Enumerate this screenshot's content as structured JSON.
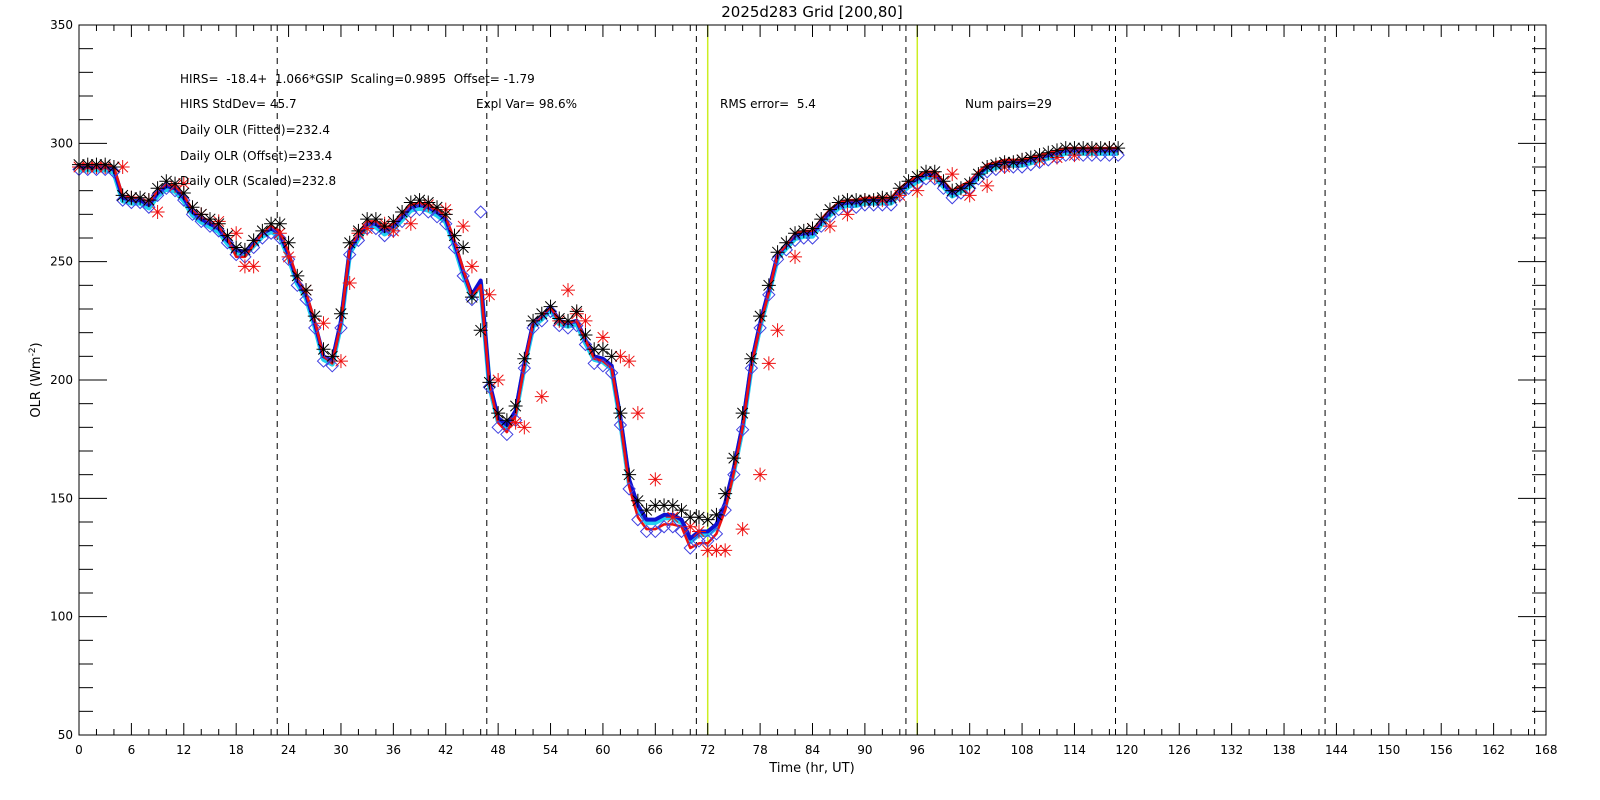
{
  "chart_data": {
    "type": "line",
    "title": "2025d283 Grid [200,80]",
    "xlabel": "Time (hr, UT)",
    "ylabel": "OLR (Wm",
    "ylabel_sup": "-2",
    "ylabel_close": ")",
    "xlim": [
      0,
      168
    ],
    "ylim": [
      50,
      350
    ],
    "xticks": [
      0,
      6,
      12,
      18,
      24,
      30,
      36,
      42,
      48,
      54,
      60,
      66,
      72,
      78,
      84,
      90,
      96,
      102,
      108,
      114,
      120,
      126,
      132,
      138,
      144,
      150,
      156,
      162,
      168
    ],
    "yticks": [
      50,
      100,
      150,
      200,
      250,
      300,
      350
    ],
    "annotations": {
      "fit_line": "HIRS=  -18.4+  1.066*GSIP  Scaling=0.9895  Offset= -1.79",
      "stddev": "HIRS StdDev= 45.7",
      "expl_var": "Expl Var= 98.6%",
      "rms": "RMS error=  5.4",
      "num_pairs": "Num pairs=29",
      "daily_fitted": "Daily OLR (Fitted)=232.4",
      "daily_offset": "Daily OLR (Offset)=233.4",
      "daily_scaled": "Daily OLR (Scaled)=232.8"
    },
    "vlines_dashed": [
      22.7,
      46.7,
      70.7,
      94.7,
      118.7,
      142.7,
      166.7
    ],
    "vlines_green": [
      72,
      96
    ],
    "colors": {
      "blue_line": "#1010d0",
      "red_line": "#ee1010",
      "cyan_band": "#22d0f0",
      "black_marker": "#000000",
      "diamond": "#4040e0",
      "green_vline": "#ccee22"
    },
    "series": [
      {
        "style": "blue-line",
        "x": [
          0,
          1,
          2,
          3,
          4,
          5,
          6,
          7,
          8,
          9,
          10,
          11,
          12,
          13,
          14,
          15,
          16,
          17,
          18,
          19,
          20,
          21,
          22,
          23,
          24,
          25,
          26,
          27,
          28,
          29,
          30,
          31,
          32,
          33,
          34,
          35,
          36,
          37,
          38,
          39,
          40,
          41,
          42,
          43,
          44,
          45,
          46,
          47,
          48,
          49,
          50,
          51,
          52,
          53,
          54,
          55,
          56,
          57,
          58,
          59,
          60,
          61,
          62,
          63,
          64,
          65,
          66,
          67,
          68,
          69,
          70,
          71,
          72,
          73,
          74,
          75,
          76,
          77,
          78,
          79,
          80,
          81,
          82,
          83,
          84,
          85,
          86,
          87,
          88,
          89,
          90,
          91,
          92,
          93,
          94,
          95,
          96,
          97,
          98,
          99,
          100,
          101,
          102,
          103,
          104,
          105,
          106,
          107,
          108,
          109,
          110,
          111,
          112,
          113,
          114,
          115,
          116,
          117,
          118,
          119
        ],
        "y": [
          290,
          290,
          290,
          290,
          289,
          277,
          276,
          276,
          274,
          279,
          282,
          281,
          277,
          271,
          268,
          266,
          264,
          259,
          255,
          254,
          258,
          262,
          264,
          262,
          253,
          242,
          236,
          224,
          210,
          208,
          225,
          255,
          261,
          266,
          266,
          263,
          265,
          269,
          273,
          274,
          273,
          271,
          268,
          258,
          246,
          236,
          242,
          199,
          184,
          181,
          187,
          207,
          224,
          227,
          231,
          225,
          224,
          225,
          217,
          210,
          209,
          206,
          184,
          158,
          147,
          141,
          141,
          143,
          143,
          141,
          133,
          136,
          136,
          139,
          148,
          163,
          181,
          207,
          224,
          238,
          253,
          257,
          261,
          262,
          262,
          267,
          271,
          274,
          275,
          275,
          276,
          276,
          276,
          276,
          280,
          283,
          285,
          287,
          287,
          283,
          279,
          281,
          283,
          287,
          290,
          291,
          292,
          292,
          292,
          293,
          294,
          295,
          296,
          297,
          297,
          297,
          297,
          297,
          297,
          297
        ]
      },
      {
        "style": "red-line",
        "x": [
          0,
          1,
          2,
          3,
          4,
          5,
          6,
          7,
          8,
          9,
          10,
          11,
          12,
          13,
          14,
          15,
          16,
          17,
          18,
          19,
          20,
          21,
          22,
          23,
          24,
          25,
          26,
          27,
          28,
          29,
          30,
          31,
          32,
          33,
          34,
          35,
          36,
          37,
          38,
          39,
          40,
          41,
          42,
          43,
          44,
          45,
          46,
          47,
          48,
          49,
          50,
          51,
          52,
          53,
          54,
          55,
          56,
          57,
          58,
          59,
          60,
          61,
          62,
          63,
          64,
          65,
          66,
          67,
          68,
          69,
          70,
          71,
          72,
          73,
          74,
          75,
          76,
          77,
          78,
          79,
          80,
          81,
          82,
          83,
          84,
          85,
          86,
          87,
          88,
          89,
          90,
          91,
          92,
          93,
          94,
          95,
          96,
          97,
          98,
          99,
          100,
          101,
          102,
          103,
          104,
          105,
          106,
          107,
          108,
          109,
          110,
          111,
          112,
          113,
          114,
          115,
          116,
          117,
          118,
          119
        ],
        "y": [
          291,
          291,
          291,
          291,
          290,
          278,
          277,
          277,
          275,
          280,
          283,
          282,
          278,
          272,
          269,
          267,
          265,
          260,
          252,
          252,
          257,
          262,
          265,
          263,
          254,
          243,
          237,
          225,
          210,
          207,
          224,
          256,
          262,
          267,
          267,
          264,
          266,
          270,
          274,
          275,
          274,
          272,
          269,
          259,
          247,
          235,
          240,
          198,
          182,
          178,
          185,
          206,
          224,
          227,
          231,
          225,
          224,
          225,
          217,
          209,
          208,
          205,
          183,
          155,
          142,
          137,
          137,
          139,
          139,
          138,
          129,
          131,
          131,
          135,
          145,
          161,
          180,
          206,
          223,
          237,
          253,
          257,
          262,
          263,
          263,
          268,
          272,
          275,
          276,
          276,
          277,
          277,
          277,
          277,
          281,
          284,
          286,
          288,
          288,
          284,
          280,
          282,
          284,
          288,
          291,
          292,
          293,
          293,
          293,
          294,
          295,
          296,
          297,
          298,
          298,
          298,
          298,
          298,
          298,
          298
        ]
      },
      {
        "style": "black-markers",
        "x": [
          0,
          1,
          2,
          3,
          4,
          5,
          6,
          7,
          8,
          9,
          10,
          11,
          12,
          13,
          14,
          15,
          16,
          17,
          18,
          19,
          20,
          21,
          22,
          23,
          24,
          25,
          26,
          27,
          28,
          29,
          30,
          31,
          32,
          33,
          34,
          35,
          36,
          37,
          38,
          39,
          40,
          41,
          42,
          43,
          44,
          45,
          46,
          47,
          48,
          49,
          50,
          51,
          52,
          53,
          54,
          55,
          56,
          57,
          58,
          59,
          60,
          61,
          62,
          63,
          64,
          65,
          66,
          67,
          68,
          69,
          70,
          71,
          72,
          73,
          74,
          75,
          76,
          77,
          78,
          79,
          80,
          81,
          82,
          83,
          84,
          85,
          86,
          87,
          88,
          89,
          90,
          91,
          92,
          93,
          94,
          95,
          96,
          97,
          98,
          99,
          100,
          101,
          102,
          103,
          104,
          105,
          106,
          107,
          108,
          109,
          110,
          111,
          112,
          113,
          114,
          115,
          116,
          117,
          118,
          119
        ],
        "y": [
          291,
          291,
          291,
          291,
          290,
          278,
          277,
          277,
          276,
          281,
          284,
          283,
          279,
          273,
          270,
          268,
          266,
          261,
          256,
          255,
          259,
          263,
          266,
          266,
          258,
          244,
          238,
          227,
          213,
          210,
          228,
          258,
          263,
          268,
          268,
          265,
          267,
          271,
          275,
          276,
          275,
          273,
          270,
          261,
          256,
          235,
          221,
          199,
          186,
          183,
          189,
          209,
          225,
          228,
          231,
          226,
          225,
          229,
          219,
          213,
          213,
          210,
          186,
          160,
          149,
          145,
          147,
          147,
          147,
          145,
          142,
          142,
          141,
          143,
          152,
          167,
          186,
          209,
          227,
          240,
          254,
          258,
          262,
          263,
          264,
          268,
          272,
          275,
          276,
          276,
          276,
          276,
          277,
          277,
          281,
          284,
          286,
          288,
          288,
          284,
          280,
          281,
          283,
          287,
          290,
          291,
          292,
          292,
          293,
          294,
          295,
          296,
          297,
          298,
          298,
          298,
          298,
          298,
          298,
          298
        ]
      },
      {
        "style": "red-asterisks",
        "x": [
          0,
          1,
          2,
          3,
          5,
          6,
          8,
          9,
          11,
          12,
          14,
          16,
          18,
          19,
          20,
          23,
          24,
          26,
          28,
          30,
          31,
          32,
          33,
          35,
          36,
          38,
          40,
          42,
          44,
          45,
          47,
          48,
          50,
          51,
          53,
          55,
          56,
          57,
          58,
          60,
          62,
          63,
          64,
          66,
          68,
          70,
          71,
          72,
          73,
          74,
          76,
          78,
          79,
          80,
          82,
          84,
          86,
          88,
          90,
          92,
          94,
          96,
          98,
          100,
          102,
          104,
          106,
          108,
          110,
          112,
          114,
          116,
          118
        ],
        "y": [
          290,
          290,
          290,
          290,
          290,
          277,
          276,
          271,
          282,
          283,
          270,
          267,
          262,
          248,
          248,
          262,
          252,
          238,
          224,
          208,
          241,
          262,
          264,
          266,
          263,
          266,
          274,
          272,
          265,
          248,
          236,
          200,
          182,
          180,
          193,
          225,
          238,
          228,
          225,
          218,
          210,
          208,
          186,
          158,
          142,
          138,
          136,
          128,
          128,
          128,
          137,
          160,
          207,
          221,
          252,
          264,
          265,
          270,
          276,
          276,
          278,
          280,
          286,
          287,
          278,
          282,
          290,
          293,
          293,
          294,
          295,
          297,
          298
        ]
      },
      {
        "style": "diamonds",
        "x": [
          0,
          1,
          2,
          3,
          4,
          5,
          6,
          7,
          8,
          9,
          10,
          11,
          12,
          13,
          14,
          15,
          16,
          17,
          18,
          19,
          20,
          21,
          22,
          23,
          24,
          25,
          26,
          27,
          28,
          29,
          30,
          31,
          32,
          33,
          34,
          35,
          36,
          37,
          38,
          39,
          40,
          41,
          42,
          43,
          44,
          45,
          46,
          47,
          48,
          49,
          50,
          51,
          52,
          53,
          54,
          55,
          56,
          57,
          58,
          59,
          60,
          61,
          62,
          63,
          64,
          65,
          66,
          67,
          68,
          69,
          70,
          71,
          72,
          73,
          74,
          75,
          76,
          77,
          78,
          79,
          80,
          81,
          82,
          83,
          84,
          85,
          86,
          87,
          88,
          89,
          90,
          91,
          92,
          93,
          94,
          95,
          96,
          97,
          98,
          99,
          100,
          101,
          102,
          103,
          104,
          105,
          106,
          107,
          108,
          109,
          110,
          111,
          112,
          113,
          114,
          115,
          116,
          117,
          118,
          119
        ],
        "y": [
          289,
          289,
          289,
          289,
          288,
          276,
          275,
          275,
          273,
          278,
          281,
          280,
          276,
          270,
          267,
          265,
          263,
          258,
          253,
          252,
          256,
          260,
          262,
          260,
          251,
          240,
          234,
          222,
          208,
          206,
          222,
          253,
          259,
          264,
          264,
          261,
          263,
          267,
          271,
          272,
          271,
          269,
          266,
          256,
          244,
          234,
          271,
          197,
          180,
          177,
          183,
          205,
          222,
          225,
          229,
          223,
          222,
          223,
          215,
          207,
          206,
          203,
          181,
          154,
          141,
          136,
          136,
          138,
          138,
          136,
          129,
          132,
          132,
          135,
          145,
          160,
          179,
          205,
          222,
          236,
          251,
          255,
          259,
          260,
          260,
          265,
          269,
          272,
          273,
          273,
          274,
          274,
          274,
          274,
          278,
          281,
          283,
          285,
          285,
          281,
          277,
          279,
          281,
          285,
          288,
          289,
          290,
          290,
          290,
          291,
          292,
          293,
          294,
          295,
          295,
          295,
          295,
          295,
          295,
          295
        ]
      }
    ]
  }
}
